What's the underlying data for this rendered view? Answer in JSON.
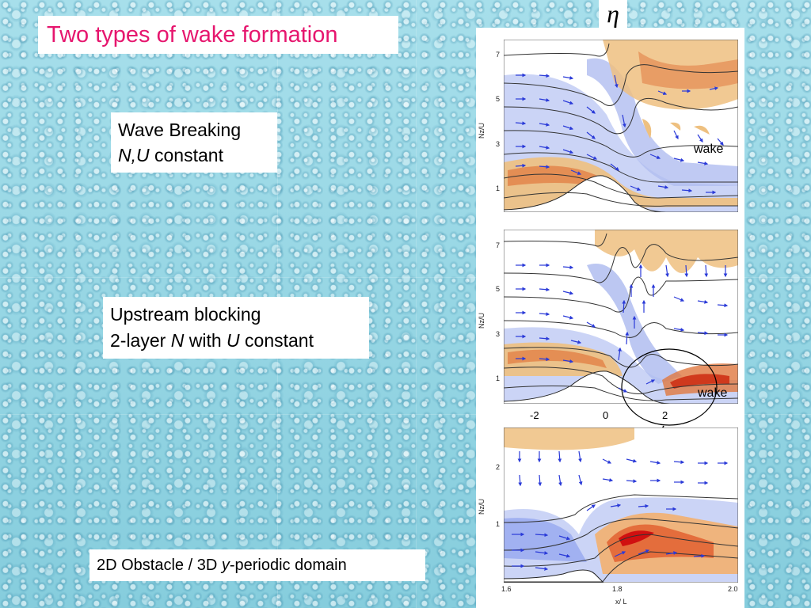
{
  "title": "Two types of wake formation",
  "eta_symbol": "η",
  "wave_breaking": {
    "line1": "Wave Breaking",
    "italic": "N,U",
    "rest": " constant"
  },
  "upstream_blocking": {
    "line1": "Upstream blocking",
    "prefix": "2-layer ",
    "var1": "N",
    "mid": " with ",
    "var2": "U",
    "rest": " constant"
  },
  "domain_note": {
    "prefix": "2D Obstacle / 3D ",
    "var": "y",
    "rest": "-periodic domain"
  },
  "panel_top": {
    "ylabel": "Nz/U",
    "yticks": [
      "7",
      "5",
      "3",
      "1"
    ],
    "annotation": "wake"
  },
  "panel_mid": {
    "ylabel": "Nz/U",
    "yticks": [
      "7",
      "5",
      "3",
      "1"
    ],
    "annotation": "wake",
    "xticks": [
      "-2",
      "0",
      "2"
    ]
  },
  "panel_bottom": {
    "ylabel": "Nz/U",
    "yticks": [
      "2",
      "1"
    ],
    "xticks": [
      "1.6",
      "1.8",
      "2.0"
    ],
    "xlabel": "x/ L"
  },
  "colors": {
    "title": "#e6166e",
    "blue_shade": "#b8c4f2",
    "orange_shade": "#eebf7a",
    "red_core": "#d83010",
    "vector": "#2a3ad8"
  }
}
